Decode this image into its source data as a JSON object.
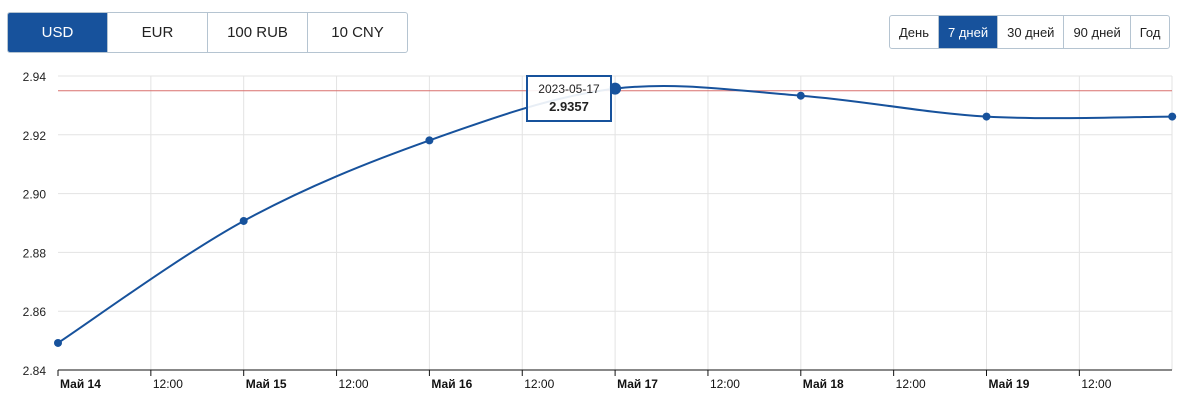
{
  "currency_tabs": [
    {
      "label": "USD",
      "active": true
    },
    {
      "label": "EUR"
    },
    {
      "label": "100 RUB"
    },
    {
      "label": "10 CNY"
    }
  ],
  "period_tabs": [
    {
      "label": "День"
    },
    {
      "label": "7 дней",
      "active": true
    },
    {
      "label": "30 дней"
    },
    {
      "label": "90 дней"
    },
    {
      "label": "Год"
    }
  ],
  "tooltip": {
    "date": "2023-05-17",
    "value": "2.9357"
  },
  "colors": {
    "accent": "#17529c",
    "reference_line": "#d9706f"
  },
  "chart_data": {
    "type": "line",
    "x": [
      "2023-05-14",
      "2023-05-15",
      "2023-05-16",
      "2023-05-17",
      "2023-05-18",
      "2023-05-19",
      "2023-05-20"
    ],
    "values": [
      2.8492,
      2.8907,
      2.9181,
      2.9357,
      2.9333,
      2.9262,
      2.9262
    ],
    "reference_value": 2.935,
    "ylim": [
      2.84,
      2.94
    ],
    "yticks": [
      "2.84",
      "2.86",
      "2.88",
      "2.90",
      "2.92",
      "2.94"
    ],
    "xticks": [
      "Май 14",
      "12:00",
      "Май 15",
      "12:00",
      "Май 16",
      "12:00",
      "Май 17",
      "12:00",
      "Май 18",
      "12:00",
      "Май 19",
      "12:00"
    ],
    "grid": true
  }
}
